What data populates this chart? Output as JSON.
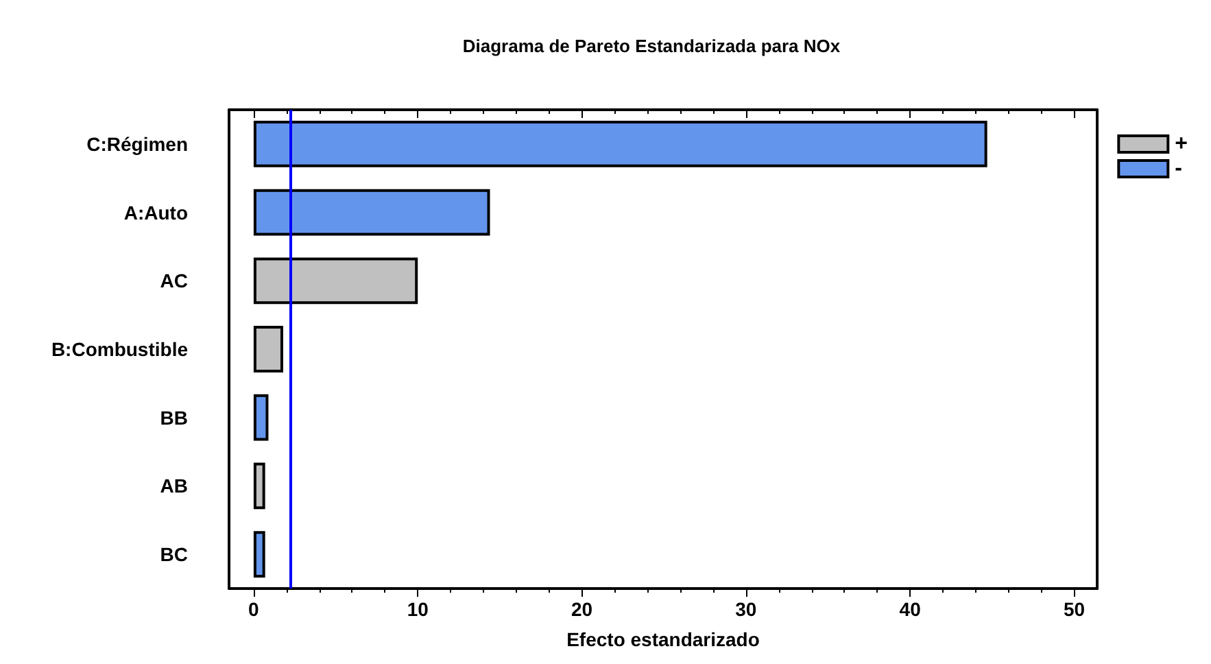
{
  "chart_data": {
    "type": "bar",
    "orientation": "horizontal",
    "title": "Diagrama de Pareto Estandarizada para NOx",
    "xlabel": "Efecto estandarizado",
    "categories": [
      "C:Régimen",
      "A:Auto",
      "AC",
      "B:Combustible",
      "BB",
      "AB",
      "BC"
    ],
    "series": [
      {
        "name": "+",
        "color": "#c0c0c0",
        "values": [
          null,
          null,
          10.0,
          1.8,
          null,
          0.7,
          null
        ]
      },
      {
        "name": "-",
        "color": "#6495ed",
        "values": [
          44.7,
          14.4,
          null,
          null,
          0.9,
          null,
          0.7
        ]
      }
    ],
    "xlim": [
      -1.5,
      51.4
    ],
    "xticks": [
      0,
      10,
      20,
      30,
      40,
      50
    ],
    "ref_lines": [
      {
        "axis": "x",
        "value": 2.2,
        "color": "#0000ff"
      }
    ],
    "legend": "top right",
    "grid": false
  }
}
